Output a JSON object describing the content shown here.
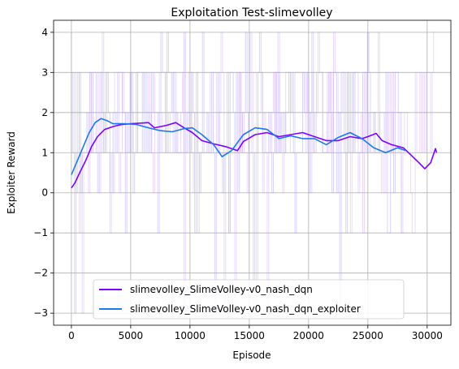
{
  "chart_data": {
    "type": "line",
    "title": "Exploitation Test-slimevolley",
    "xlabel": "Episode",
    "ylabel": "Exploiter Reward",
    "xlim": [
      -1500,
      32000
    ],
    "ylim": [
      -3.3,
      4.3
    ],
    "xticks": [
      0,
      5000,
      10000,
      15000,
      20000,
      25000,
      30000
    ],
    "xtick_labels": [
      "0",
      "5000",
      "10000",
      "15000",
      "20000",
      "25000",
      "30000"
    ],
    "yticks": [
      -3,
      -2,
      -1,
      0,
      1,
      2,
      3,
      4
    ],
    "ytick_labels": [
      "−3",
      "−2",
      "−1",
      "0",
      "1",
      "2",
      "3",
      "4"
    ],
    "grid": true,
    "legend_position": "lower-center",
    "series": [
      {
        "name": "slimevolley_SlimeVolley-v0_nash_dqn",
        "color": "#7f00ff",
        "raw_color": "#d9b8ff",
        "x_end": 30800,
        "smoothed": [
          [
            0,
            0.12
          ],
          [
            300,
            0.25
          ],
          [
            700,
            0.5
          ],
          [
            1200,
            0.8
          ],
          [
            1700,
            1.15
          ],
          [
            2200,
            1.4
          ],
          [
            2800,
            1.58
          ],
          [
            3500,
            1.65
          ],
          [
            4200,
            1.7
          ],
          [
            5000,
            1.72
          ],
          [
            6000,
            1.74
          ],
          [
            6500,
            1.75
          ],
          [
            7000,
            1.62
          ],
          [
            8000,
            1.68
          ],
          [
            8800,
            1.75
          ],
          [
            9500,
            1.62
          ],
          [
            10200,
            1.5
          ],
          [
            11000,
            1.3
          ],
          [
            12000,
            1.22
          ],
          [
            13000,
            1.15
          ],
          [
            14000,
            1.05
          ],
          [
            14500,
            1.28
          ],
          [
            15500,
            1.45
          ],
          [
            16500,
            1.5
          ],
          [
            17500,
            1.4
          ],
          [
            18500,
            1.45
          ],
          [
            19500,
            1.5
          ],
          [
            20500,
            1.4
          ],
          [
            21500,
            1.3
          ],
          [
            22500,
            1.3
          ],
          [
            23500,
            1.4
          ],
          [
            24500,
            1.35
          ],
          [
            25000,
            1.4
          ],
          [
            25700,
            1.48
          ],
          [
            26200,
            1.3
          ],
          [
            27000,
            1.2
          ],
          [
            28000,
            1.12
          ],
          [
            28600,
            0.95
          ],
          [
            29300,
            0.75
          ],
          [
            29800,
            0.6
          ],
          [
            30300,
            0.75
          ],
          [
            30700,
            1.1
          ],
          [
            30800,
            1.0
          ]
        ]
      },
      {
        "name": "slimevolley_SlimeVolley-v0_nash_dqn_exploiter",
        "color": "#1e78e6",
        "raw_color": "#b7b0ff",
        "x_end": 28200,
        "smoothed": [
          [
            0,
            0.45
          ],
          [
            500,
            0.8
          ],
          [
            1000,
            1.15
          ],
          [
            1500,
            1.5
          ],
          [
            2000,
            1.75
          ],
          [
            2500,
            1.85
          ],
          [
            3000,
            1.8
          ],
          [
            3500,
            1.72
          ],
          [
            4500,
            1.72
          ],
          [
            5500,
            1.7
          ],
          [
            6500,
            1.62
          ],
          [
            7500,
            1.55
          ],
          [
            8500,
            1.52
          ],
          [
            9500,
            1.6
          ],
          [
            10200,
            1.62
          ],
          [
            11000,
            1.45
          ],
          [
            12000,
            1.2
          ],
          [
            12700,
            0.9
          ],
          [
            13500,
            1.05
          ],
          [
            14500,
            1.45
          ],
          [
            15500,
            1.62
          ],
          [
            16500,
            1.58
          ],
          [
            17500,
            1.35
          ],
          [
            18500,
            1.42
          ],
          [
            19500,
            1.35
          ],
          [
            20500,
            1.35
          ],
          [
            21500,
            1.2
          ],
          [
            22500,
            1.38
          ],
          [
            23500,
            1.5
          ],
          [
            24500,
            1.35
          ],
          [
            25500,
            1.12
          ],
          [
            26500,
            1.0
          ],
          [
            27500,
            1.12
          ],
          [
            28200,
            1.05
          ]
        ]
      }
    ]
  }
}
